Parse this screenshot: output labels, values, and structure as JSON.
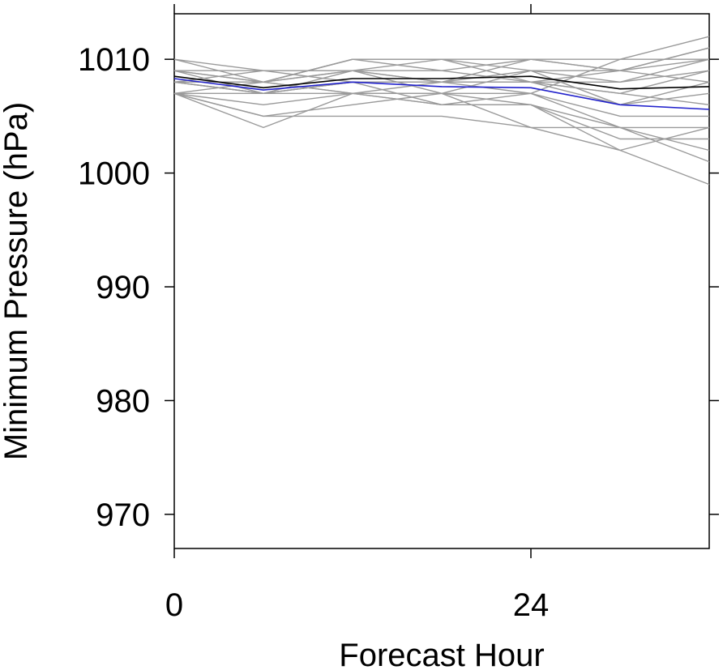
{
  "chart_data": {
    "type": "line",
    "title": "",
    "xlabel": "Forecast Hour",
    "ylabel": "Minimum Pressure (hPa)",
    "xlim": [
      0,
      36
    ],
    "ylim": [
      967,
      1014
    ],
    "xticks": [
      0,
      24
    ],
    "yticks": [
      970,
      980,
      990,
      1000,
      1010
    ],
    "x": [
      0,
      6,
      12,
      18,
      24,
      30,
      36
    ],
    "grid": false,
    "legend": "none",
    "colors": {
      "members": "#9a9a9a",
      "ensemble_mean": "#000000",
      "analysis": "#2222cc"
    },
    "series": [
      {
        "role": "member",
        "values": [
          1010,
          1008,
          1010,
          1010,
          1010,
          1010,
          1012
        ]
      },
      {
        "role": "member",
        "values": [
          1010,
          1009,
          1009,
          1009,
          1010,
          1009,
          1011
        ]
      },
      {
        "role": "member",
        "values": [
          1009,
          1008,
          1010,
          1010,
          1009,
          1008,
          1010
        ]
      },
      {
        "role": "member",
        "values": [
          1009,
          1009,
          1008,
          1008,
          1010,
          1009,
          1010
        ]
      },
      {
        "role": "member",
        "values": [
          1009,
          1008,
          1009,
          1010,
          1008,
          1009,
          1011
        ]
      },
      {
        "role": "member",
        "values": [
          1008,
          1008,
          1010,
          1009,
          1008,
          1007,
          1009
        ]
      },
      {
        "role": "member",
        "values": [
          1008,
          1007,
          1009,
          1008,
          1008,
          1006,
          1008
        ]
      },
      {
        "role": "member",
        "values": [
          1008,
          1007,
          1008,
          1008,
          1009,
          1006,
          1007
        ]
      },
      {
        "role": "member",
        "values": [
          1008,
          1007,
          1007,
          1007,
          1007,
          1005,
          1005
        ]
      },
      {
        "role": "member",
        "values": [
          1007,
          1007,
          1008,
          1006,
          1007,
          1004,
          1004
        ]
      },
      {
        "role": "member",
        "values": [
          1007,
          1006,
          1007,
          1006,
          1006,
          1003,
          1003
        ]
      },
      {
        "role": "member",
        "values": [
          1007,
          1005,
          1006,
          1007,
          1006,
          1004,
          1001
        ]
      },
      {
        "role": "member",
        "values": [
          1007,
          1004,
          1007,
          1007,
          1004,
          1002,
          999
        ]
      },
      {
        "role": "member",
        "values": [
          1007,
          1005,
          1005,
          1005,
          1004,
          1004,
          1002
        ]
      },
      {
        "role": "member",
        "values": [
          1008,
          1008,
          1007,
          1006,
          1006,
          1002,
          1004
        ]
      },
      {
        "role": "member",
        "values": [
          1009,
          1007,
          1008,
          1008,
          1008,
          1007,
          1006
        ]
      },
      {
        "role": "member",
        "values": [
          1008,
          1009,
          1009,
          1007,
          1009,
          1009,
          1008
        ]
      },
      {
        "role": "member",
        "values": [
          1008,
          1008,
          1009,
          1008,
          1007,
          1010,
          1010
        ]
      },
      {
        "role": "member",
        "values": [
          1007,
          1008,
          1007,
          1008,
          1008,
          1008,
          1009
        ]
      },
      {
        "role": "ensemble_mean",
        "values": [
          1008.5,
          1007.5,
          1008.3,
          1008.3,
          1008.5,
          1007.4,
          1007.6
        ]
      },
      {
        "role": "analysis",
        "values": [
          1008.3,
          1007.3,
          1008.0,
          1007.6,
          1007.5,
          1006.0,
          1005.6
        ]
      }
    ]
  }
}
